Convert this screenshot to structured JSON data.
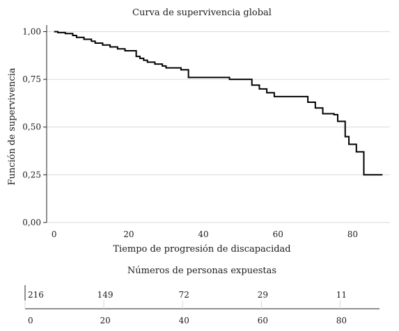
{
  "chart_data": {
    "type": "line",
    "title": "Curva de supervivencia global",
    "xlabel": "Tiempo de progresión de discapacidad",
    "ylabel": "Función de supervivencia",
    "xlim": [
      -2,
      90
    ],
    "ylim": [
      0,
      1.02
    ],
    "x_ticks": [
      0,
      20,
      40,
      60,
      80
    ],
    "x_tick_labels": [
      "0",
      "20",
      "40",
      "60",
      "80"
    ],
    "y_ticks": [
      0,
      0.25,
      0.5,
      0.75,
      1.0
    ],
    "y_tick_labels": [
      "0,00",
      "0,25",
      "0,50",
      "0,75",
      "1,00"
    ],
    "grid": true,
    "step_points": [
      [
        0,
        1.0
      ],
      [
        1,
        0.995
      ],
      [
        3,
        0.99
      ],
      [
        5,
        0.98
      ],
      [
        6,
        0.97
      ],
      [
        8,
        0.96
      ],
      [
        10,
        0.95
      ],
      [
        11,
        0.94
      ],
      [
        13,
        0.93
      ],
      [
        15,
        0.92
      ],
      [
        17,
        0.91
      ],
      [
        19,
        0.9
      ],
      [
        22,
        0.87
      ],
      [
        23,
        0.86
      ],
      [
        24,
        0.85
      ],
      [
        25,
        0.84
      ],
      [
        27,
        0.83
      ],
      [
        29,
        0.82
      ],
      [
        30,
        0.81
      ],
      [
        34,
        0.8
      ],
      [
        36,
        0.76
      ],
      [
        47,
        0.75
      ],
      [
        53,
        0.72
      ],
      [
        55,
        0.7
      ],
      [
        57,
        0.68
      ],
      [
        59,
        0.66
      ],
      [
        68,
        0.63
      ],
      [
        70,
        0.6
      ],
      [
        72,
        0.57
      ],
      [
        75,
        0.565
      ],
      [
        76,
        0.53
      ],
      [
        78,
        0.45
      ],
      [
        79,
        0.41
      ],
      [
        81,
        0.37
      ],
      [
        83,
        0.25
      ],
      [
        88,
        0.25
      ]
    ],
    "risk_table": {
      "title": "Números de personas expuestas",
      "times": [
        0,
        20,
        40,
        60,
        80
      ],
      "tick_labels": [
        "0",
        "20",
        "40",
        "60",
        "80"
      ],
      "counts": [
        "216",
        "149",
        "72",
        "29",
        "11"
      ]
    }
  }
}
